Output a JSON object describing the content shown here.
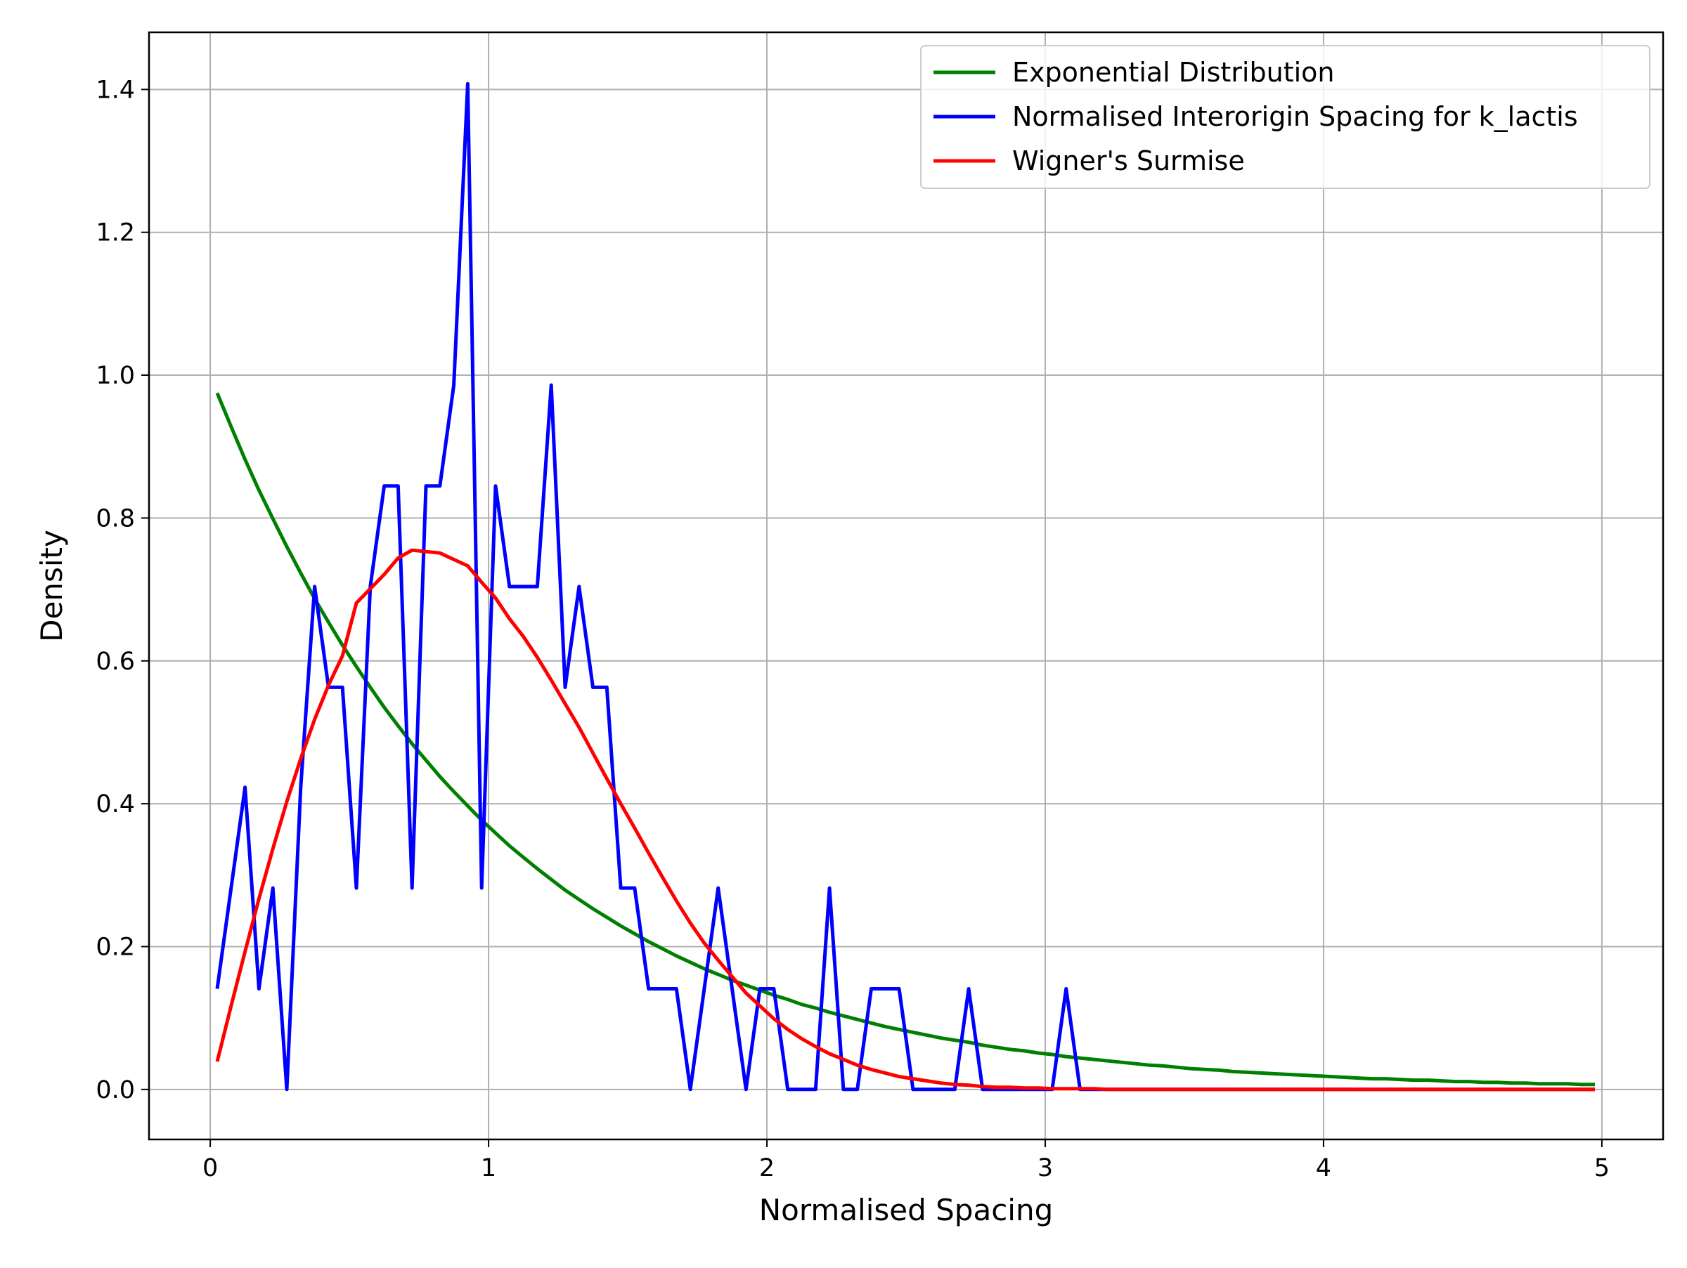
{
  "chart_data": {
    "type": "line",
    "title": "",
    "xlabel": "Normalised Spacing",
    "ylabel": "Density",
    "xlim": [
      -0.22,
      5.22
    ],
    "ylim": [
      -0.07,
      1.48
    ],
    "xticks": [
      0,
      1,
      2,
      3,
      4,
      5
    ],
    "xtick_labels": [
      "0",
      "1",
      "2",
      "3",
      "4",
      "5"
    ],
    "yticks": [
      0.0,
      0.2,
      0.4,
      0.6,
      0.8,
      1.0,
      1.2,
      1.4
    ],
    "ytick_labels": [
      "0.0",
      "0.2",
      "0.4",
      "0.6",
      "0.8",
      "1.0",
      "1.2",
      "1.4"
    ],
    "grid": true,
    "legend_position": "top-right",
    "series": [
      {
        "name": "Exponential Distribution",
        "color": "#008000",
        "x": [
          0.025,
          0.075,
          0.125,
          0.175,
          0.225,
          0.275,
          0.325,
          0.375,
          0.425,
          0.475,
          0.525,
          0.575,
          0.625,
          0.675,
          0.725,
          0.775,
          0.825,
          0.875,
          0.925,
          0.975,
          1.025,
          1.075,
          1.125,
          1.175,
          1.225,
          1.275,
          1.325,
          1.375,
          1.425,
          1.475,
          1.525,
          1.575,
          1.625,
          1.675,
          1.725,
          1.775,
          1.825,
          1.875,
          1.925,
          1.975,
          2.025,
          2.075,
          2.125,
          2.175,
          2.225,
          2.275,
          2.325,
          2.375,
          2.425,
          2.475,
          2.525,
          2.575,
          2.625,
          2.675,
          2.725,
          2.775,
          2.825,
          2.875,
          2.925,
          2.975,
          3.025,
          3.075,
          3.125,
          3.175,
          3.225,
          3.275,
          3.325,
          3.375,
          3.425,
          3.475,
          3.525,
          3.575,
          3.625,
          3.675,
          3.725,
          3.775,
          3.825,
          3.875,
          3.925,
          3.975,
          4.025,
          4.075,
          4.125,
          4.175,
          4.225,
          4.275,
          4.325,
          4.375,
          4.425,
          4.475,
          4.525,
          4.575,
          4.625,
          4.675,
          4.725,
          4.775,
          4.825,
          4.875,
          4.925,
          4.975
        ],
        "y": [
          0.975,
          0.928,
          0.882,
          0.839,
          0.799,
          0.76,
          0.723,
          0.687,
          0.654,
          0.622,
          0.592,
          0.563,
          0.535,
          0.509,
          0.484,
          0.461,
          0.438,
          0.417,
          0.397,
          0.377,
          0.359,
          0.341,
          0.325,
          0.309,
          0.294,
          0.279,
          0.266,
          0.253,
          0.241,
          0.229,
          0.218,
          0.207,
          0.197,
          0.187,
          0.178,
          0.169,
          0.161,
          0.153,
          0.146,
          0.139,
          0.132,
          0.126,
          0.119,
          0.114,
          0.108,
          0.103,
          0.098,
          0.093,
          0.088,
          0.084,
          0.08,
          0.076,
          0.072,
          0.069,
          0.066,
          0.062,
          0.059,
          0.056,
          0.054,
          0.051,
          0.049,
          0.046,
          0.044,
          0.042,
          0.04,
          0.038,
          0.036,
          0.034,
          0.033,
          0.031,
          0.029,
          0.028,
          0.027,
          0.025,
          0.024,
          0.023,
          0.022,
          0.021,
          0.02,
          0.019,
          0.018,
          0.017,
          0.016,
          0.015,
          0.015,
          0.014,
          0.013,
          0.013,
          0.012,
          0.011,
          0.011,
          0.01,
          0.01,
          0.009,
          0.009,
          0.008,
          0.008,
          0.008,
          0.007,
          0.007
        ]
      },
      {
        "name": "Normalised Interorigin Spacing for k_lactis",
        "color": "#0000ff",
        "x": [
          0.025,
          0.075,
          0.125,
          0.175,
          0.225,
          0.275,
          0.325,
          0.375,
          0.425,
          0.475,
          0.525,
          0.575,
          0.625,
          0.675,
          0.725,
          0.775,
          0.825,
          0.875,
          0.925,
          0.975,
          1.025,
          1.075,
          1.125,
          1.175,
          1.225,
          1.275,
          1.325,
          1.375,
          1.425,
          1.475,
          1.525,
          1.575,
          1.625,
          1.675,
          1.725,
          1.775,
          1.825,
          1.875,
          1.925,
          1.975,
          2.025,
          2.075,
          2.125,
          2.175,
          2.225,
          2.275,
          2.325,
          2.375,
          2.425,
          2.475,
          2.525,
          2.575,
          2.625,
          2.675,
          2.725,
          2.775,
          2.825,
          2.875,
          2.925,
          2.975,
          3.025,
          3.075,
          3.125,
          3.175,
          3.225,
          3.275,
          3.325,
          3.375,
          3.425,
          3.475,
          3.525,
          3.575,
          3.625,
          3.675,
          3.725,
          3.775,
          3.825,
          3.875,
          3.925,
          3.975,
          4.025,
          4.075,
          4.125,
          4.175,
          4.225,
          4.275,
          4.325,
          4.375,
          4.425,
          4.475,
          4.525,
          4.575,
          4.625,
          4.675,
          4.725,
          4.775,
          4.825,
          4.875,
          4.925,
          4.975
        ],
        "y": [
          0.141,
          0.282,
          0.423,
          0.141,
          0.282,
          0.0,
          0.423,
          0.704,
          0.563,
          0.563,
          0.282,
          0.704,
          0.845,
          0.845,
          0.282,
          0.845,
          0.845,
          0.986,
          1.408,
          0.282,
          0.845,
          0.704,
          0.704,
          0.704,
          0.986,
          0.563,
          0.704,
          0.563,
          0.563,
          0.282,
          0.282,
          0.141,
          0.141,
          0.141,
          0.0,
          0.141,
          0.282,
          0.141,
          0.0,
          0.141,
          0.141,
          0.0,
          0.0,
          0.0,
          0.282,
          0.0,
          0.0,
          0.141,
          0.141,
          0.141,
          0.0,
          0.0,
          0.0,
          0.0,
          0.141,
          0.0,
          0.0,
          0.0,
          0.0,
          0.0,
          0.0,
          0.141,
          0.0,
          0.0,
          0.0,
          0.0,
          0.0,
          0.0,
          0.0,
          0.0,
          0.0,
          0.0,
          0.0,
          0.0,
          0.0,
          0.0,
          0.0,
          0.0,
          0.0,
          0.0,
          0.0,
          0.0,
          0.0,
          0.0,
          0.0,
          0.0,
          0.0,
          0.0,
          0.0,
          0.0,
          0.0,
          0.0,
          0.0,
          0.0,
          0.0,
          0.0,
          0.0,
          0.0,
          0.0,
          0.0
        ]
      },
      {
        "name": "Wigner's Surmise",
        "color": "#ff0000",
        "x": [
          0.025,
          0.075,
          0.125,
          0.175,
          0.225,
          0.275,
          0.325,
          0.375,
          0.425,
          0.475,
          0.525,
          0.575,
          0.625,
          0.675,
          0.725,
          0.775,
          0.825,
          0.875,
          0.925,
          0.975,
          1.025,
          1.075,
          1.125,
          1.175,
          1.225,
          1.275,
          1.325,
          1.375,
          1.425,
          1.475,
          1.525,
          1.575,
          1.625,
          1.675,
          1.725,
          1.775,
          1.825,
          1.875,
          1.925,
          1.975,
          2.025,
          2.075,
          2.125,
          2.175,
          2.225,
          2.275,
          2.325,
          2.375,
          2.425,
          2.475,
          2.525,
          2.575,
          2.625,
          2.675,
          2.725,
          2.775,
          2.825,
          2.875,
          2.925,
          2.975,
          3.025,
          3.075,
          3.125,
          3.175,
          3.225,
          3.275,
          3.325,
          3.375,
          3.425,
          3.475,
          3.525,
          3.575,
          3.625,
          3.675,
          3.725,
          3.775,
          3.825,
          3.875,
          3.925,
          3.975,
          4.025,
          4.075,
          4.125,
          4.175,
          4.225,
          4.275,
          4.325,
          4.375,
          4.425,
          4.475,
          4.525,
          4.575,
          4.625,
          4.675,
          4.725,
          4.775,
          4.825,
          4.875,
          4.925,
          4.975
        ],
        "y": [
          0.039,
          0.117,
          0.193,
          0.267,
          0.337,
          0.403,
          0.463,
          0.518,
          0.566,
          0.607,
          0.681,
          0.701,
          0.721,
          0.744,
          0.755,
          0.753,
          0.751,
          0.742,
          0.733,
          0.71,
          0.688,
          0.659,
          0.634,
          0.605,
          0.573,
          0.54,
          0.507,
          0.471,
          0.435,
          0.4,
          0.366,
          0.331,
          0.297,
          0.264,
          0.233,
          0.205,
          0.181,
          0.158,
          0.135,
          0.117,
          0.099,
          0.084,
          0.071,
          0.06,
          0.05,
          0.042,
          0.034,
          0.028,
          0.023,
          0.018,
          0.015,
          0.012,
          0.009,
          0.007,
          0.006,
          0.004,
          0.003,
          0.003,
          0.002,
          0.002,
          0.001,
          0.001,
          0.001,
          0.001,
          0.0,
          0.0,
          0.0,
          0.0,
          0.0,
          0.0,
          0.0,
          0.0,
          0.0,
          0.0,
          0.0,
          0.0,
          0.0,
          0.0,
          0.0,
          0.0,
          0.0,
          0.0,
          0.0,
          0.0,
          0.0,
          0.0,
          0.0,
          0.0,
          0.0,
          0.0,
          0.0,
          0.0,
          0.0,
          0.0,
          0.0,
          0.0,
          0.0,
          0.0,
          0.0,
          0.0
        ]
      }
    ]
  }
}
